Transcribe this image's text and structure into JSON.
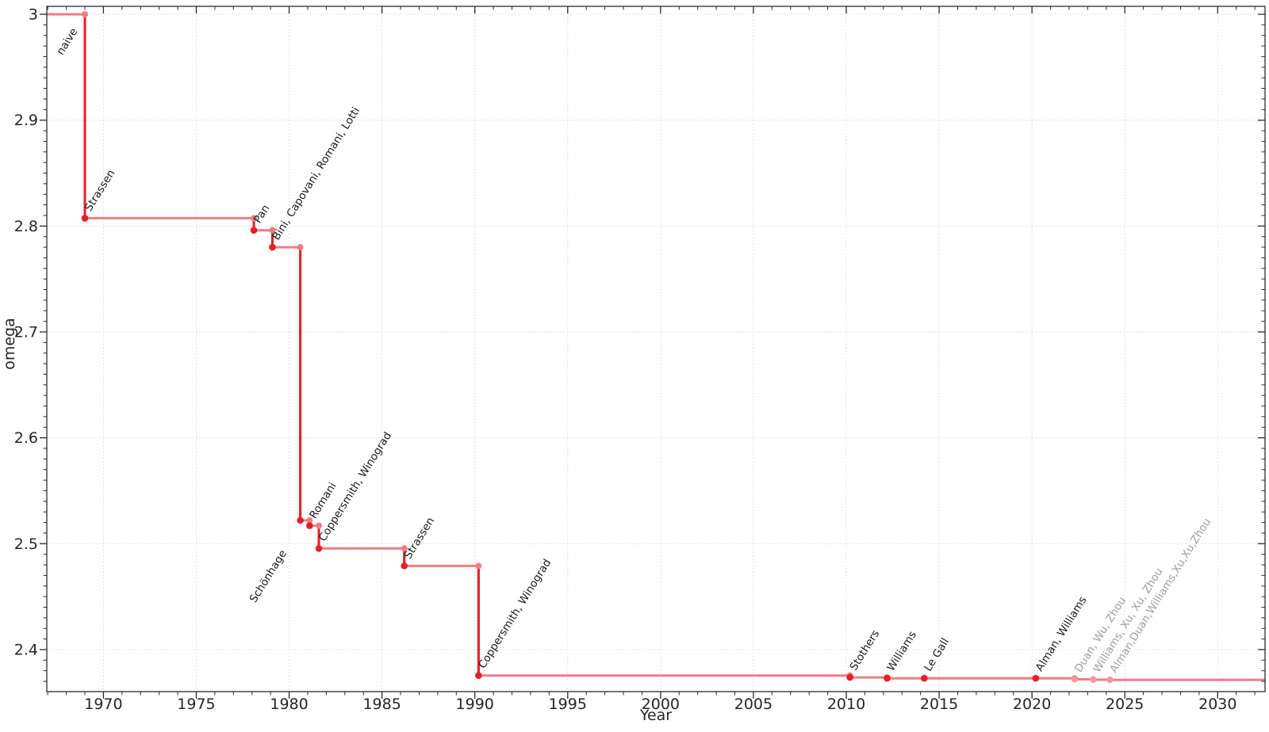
{
  "figure": {
    "xlabel": "Year",
    "ylabel": "omega"
  },
  "chart_data": {
    "type": "line",
    "step": "post",
    "title": "",
    "xlabel": "Year",
    "ylabel": "omega",
    "xlim": [
      1966.95,
      2032.55
    ],
    "ylim": [
      2.3603,
      3.0075
    ],
    "x_major_ticks": [
      1970,
      1975,
      1980,
      1985,
      1990,
      1995,
      2000,
      2005,
      2010,
      2015,
      2020,
      2025,
      2030
    ],
    "y_major_ticks": [
      2.4,
      2.5,
      2.6,
      2.7,
      2.8,
      2.9,
      3
    ],
    "y_tick_labels": [
      "2.4",
      "2.5",
      "2.6",
      "2.7",
      "2.8",
      "2.9",
      "3"
    ],
    "x_minor_step": 1,
    "y_minor_step": 0.01,
    "grid": "major-dotted",
    "colors": {
      "step_line": "#f07d82",
      "drop_line": "#e81e24",
      "point": "#e81e24",
      "muted_point": "#f5989b",
      "label": "#1a1a1a",
      "muted_label": "#9e9e9e",
      "axis_text": "#262626",
      "grid_line": "#d9d9d9"
    },
    "initial": {
      "omega": 3.0,
      "label": "naive",
      "label_anchor": "end",
      "label_dx": -9,
      "label_dy": 21
    },
    "points": [
      {
        "year": 1969.0,
        "omega": 2.8074,
        "label": "Strassen"
      },
      {
        "year": 1978.1,
        "omega": 2.796,
        "label": "Pan"
      },
      {
        "year": 1979.1,
        "omega": 2.78,
        "label": "Bini, Capovani, Romani, Lotti"
      },
      {
        "year": 1980.6,
        "omega": 2.522,
        "label": "Schönhage",
        "label_anchor": "end",
        "label_dx": -17,
        "label_dy": 41
      },
      {
        "year": 1981.1,
        "omega": 2.517,
        "label": "Romani"
      },
      {
        "year": 1981.6,
        "omega": 2.4955,
        "label": "Coppersmith, Winograd"
      },
      {
        "year": 1986.2,
        "omega": 2.479,
        "label": "Strassen"
      },
      {
        "year": 1990.2,
        "omega": 2.3755,
        "label": "Coppersmith, Winograd"
      },
      {
        "year": 2010.2,
        "omega": 2.3737,
        "label": "Stothers"
      },
      {
        "year": 2012.2,
        "omega": 2.3729,
        "label": "Williams"
      },
      {
        "year": 2014.2,
        "omega": 2.37286,
        "label": "Le Gall"
      },
      {
        "year": 2020.2,
        "omega": 2.37286,
        "label": "Alman, Williams"
      },
      {
        "year": 2022.3,
        "omega": 2.37188,
        "label": "Duan, Wu, Zhou",
        "muted": true
      },
      {
        "year": 2023.3,
        "omega": 2.37155,
        "label": "Williams, Xu, Xu, Zhou",
        "muted": true
      },
      {
        "year": 2024.2,
        "omega": 2.37134,
        "label": "Alman,Duan,Williams,Xu,Xu,Zhou",
        "muted": true
      }
    ],
    "label_rotation_deg": -58,
    "annotation_font_px": 13.5,
    "tick_font_px": 19
  }
}
